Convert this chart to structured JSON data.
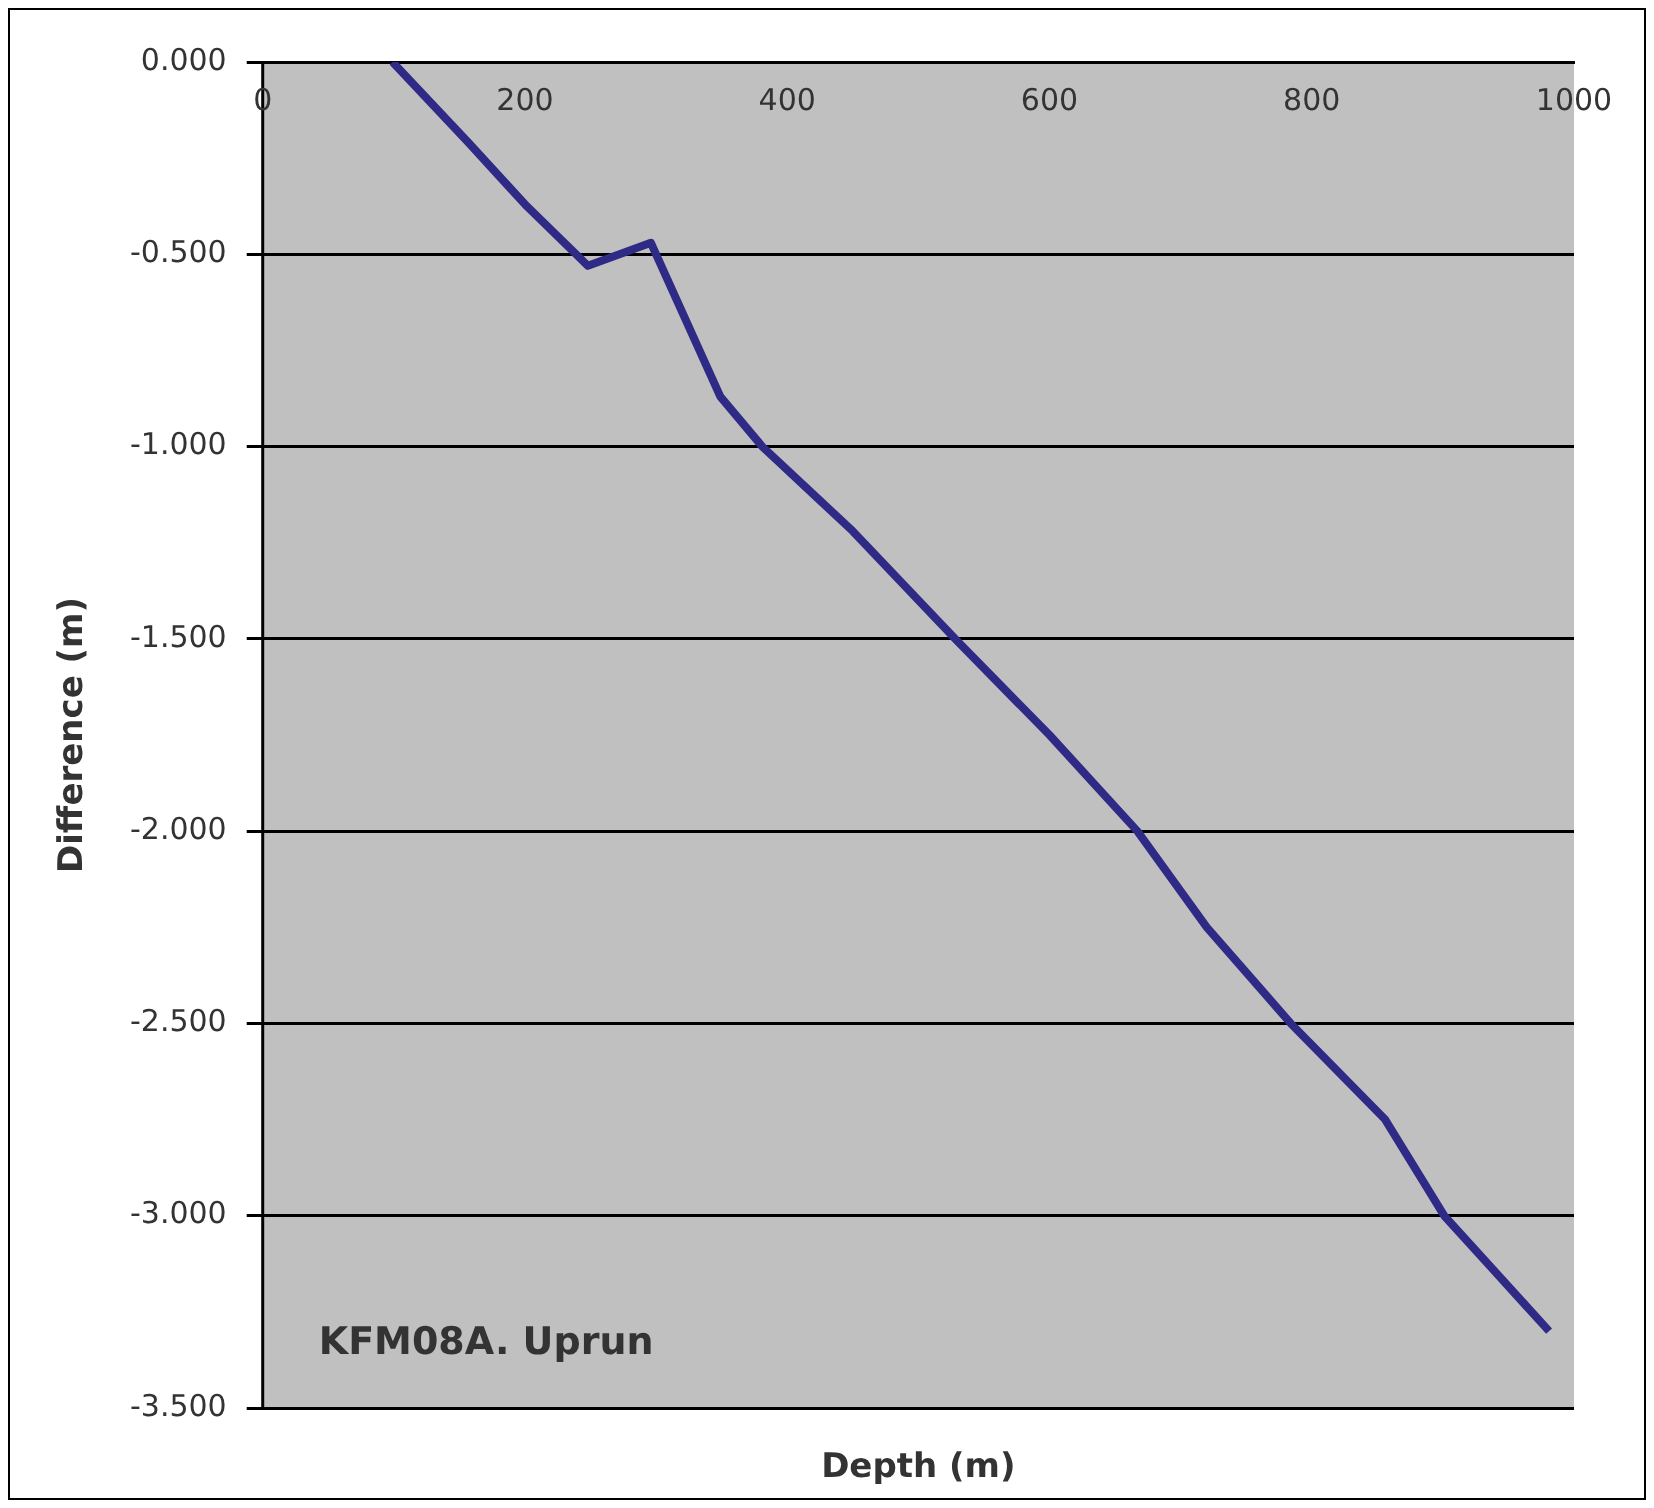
{
  "chart_data": {
    "type": "line",
    "xlabel": "Depth (m)",
    "ylabel": "Difference (m)",
    "annotations": [
      "KFM08A. Uprun"
    ],
    "series": [
      {
        "color": "#2e2a86",
        "x": [
          99,
          157,
          200,
          248,
          296,
          349,
          381,
          450,
          528,
          600,
          667,
          720,
          784,
          856,
          901,
          981
        ],
        "values": [
          0,
          -0.21,
          -0.37,
          -0.53,
          -0.47,
          -0.87,
          -1.0,
          -1.22,
          -1.5,
          -1.75,
          -2.0,
          -2.25,
          -2.5,
          -2.75,
          -3.0,
          -3.3
        ]
      }
    ],
    "xlim": [
      0,
      1000
    ],
    "xticks": [
      0,
      200,
      400,
      600,
      800,
      1000
    ],
    "ylim": [
      -3.5,
      0
    ],
    "yticks": [
      {
        "value": 0,
        "label": "0.000"
      },
      {
        "value": -0.5,
        "label": "-0.500"
      },
      {
        "value": -1,
        "label": "-1.000"
      },
      {
        "value": -1.5,
        "label": "-1.500"
      },
      {
        "value": -2,
        "label": "-2.000"
      },
      {
        "value": -2.5,
        "label": "-2.500"
      },
      {
        "value": -3,
        "label": "-3.000"
      },
      {
        "value": -3.5,
        "label": "-3.500"
      }
    ],
    "grid": "y",
    "legend": false,
    "marker": "none",
    "line_style": "solid"
  }
}
